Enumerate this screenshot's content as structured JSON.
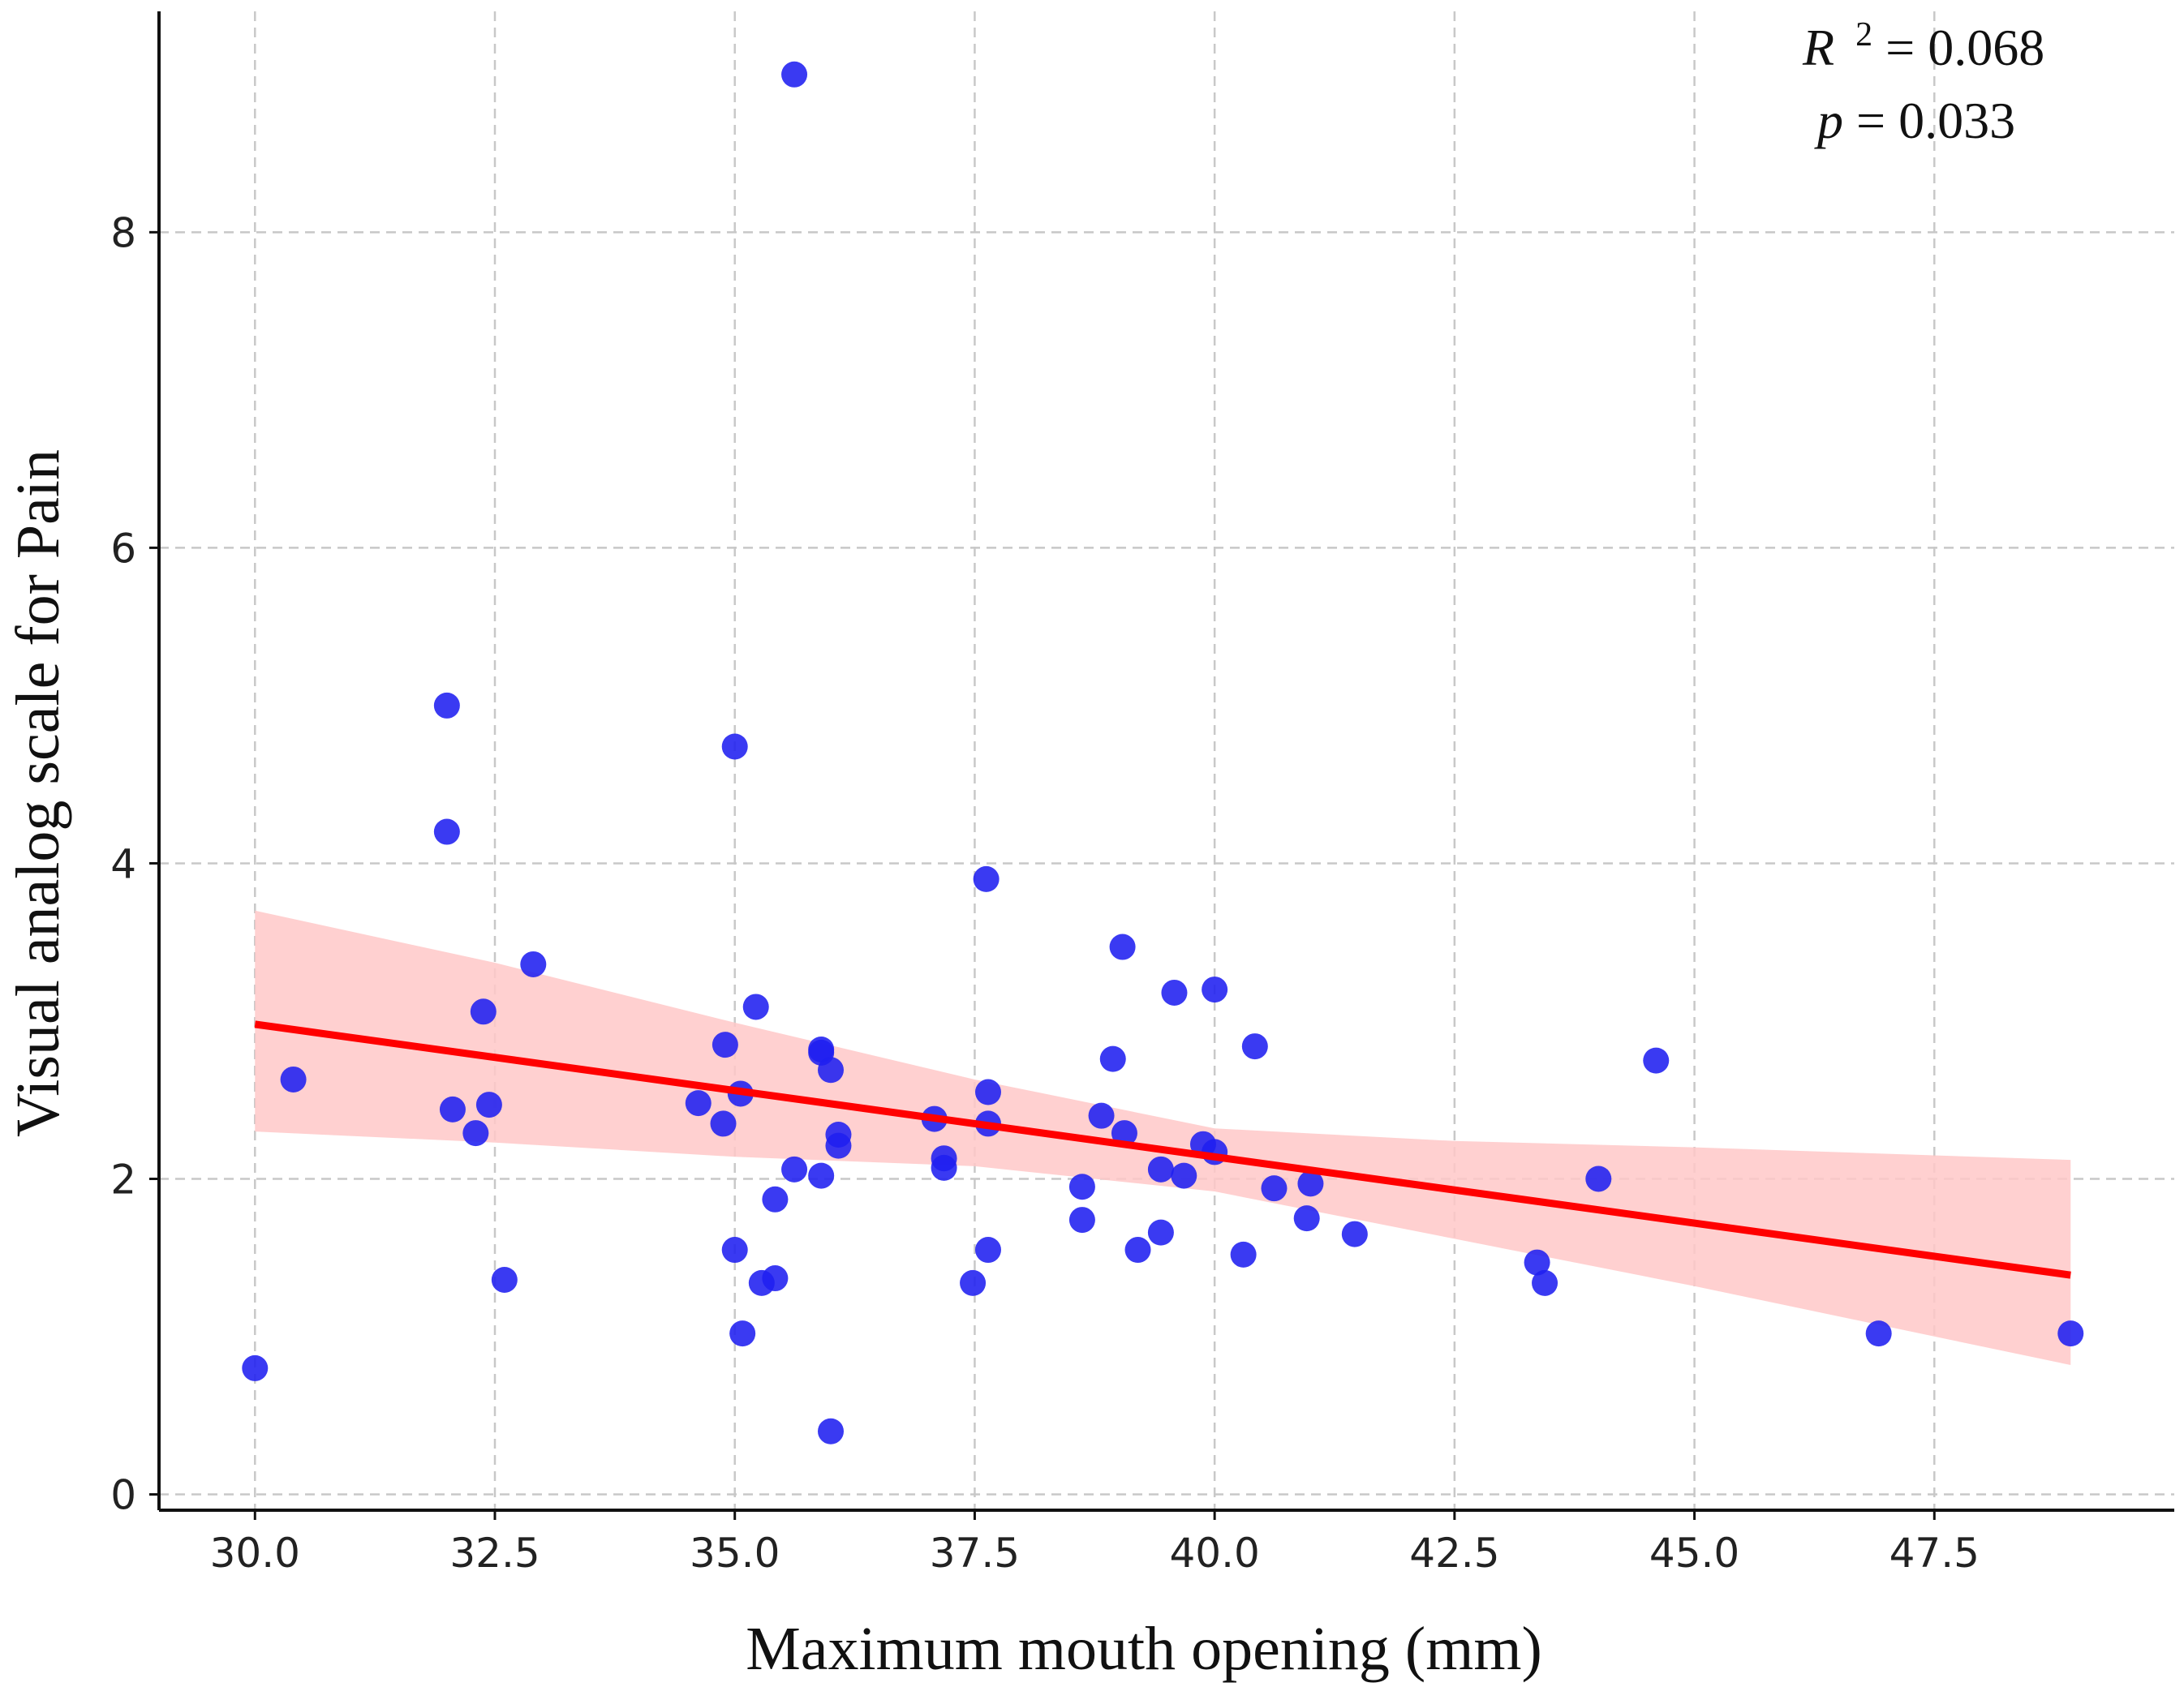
{
  "chart_data": {
    "type": "scatter",
    "xlabel": "Maximum mouth opening (mm)",
    "ylabel": "Visual analog scale for Pain",
    "xlim": [
      29.0,
      50.0
    ],
    "ylim": [
      -0.1,
      9.4
    ],
    "x_ticks": [
      "30.0",
      "32.5",
      "35.0",
      "37.5",
      "40.0",
      "42.5",
      "45.0",
      "47.5"
    ],
    "y_ticks": [
      "0",
      "2",
      "4",
      "6",
      "8"
    ],
    "x_tick_values": [
      30.0,
      32.5,
      35.0,
      37.5,
      40.0,
      42.5,
      45.0,
      47.5
    ],
    "y_tick_values": [
      0,
      2,
      4,
      6,
      8
    ],
    "grid": true,
    "annotation": {
      "r2_symbol": "R",
      "r2_exponent": "2",
      "r2_value": " = 0.068",
      "p_symbol": "p",
      "p_value": " = 0.033"
    },
    "colors": {
      "points": "#1f1ff0",
      "fit_line": "#ff0000",
      "confidence_band": "#ffc8c8"
    },
    "points": [
      {
        "x": 30.0,
        "y": 0.8
      },
      {
        "x": 30.4,
        "y": 2.63
      },
      {
        "x": 32.0,
        "y": 5.0
      },
      {
        "x": 32.0,
        "y": 4.2
      },
      {
        "x": 32.06,
        "y": 2.44
      },
      {
        "x": 32.3,
        "y": 2.29
      },
      {
        "x": 32.38,
        "y": 3.06
      },
      {
        "x": 32.44,
        "y": 2.47
      },
      {
        "x": 32.6,
        "y": 1.36
      },
      {
        "x": 32.9,
        "y": 3.36
      },
      {
        "x": 34.62,
        "y": 2.48
      },
      {
        "x": 34.88,
        "y": 2.35
      },
      {
        "x": 34.9,
        "y": 2.85
      },
      {
        "x": 35.0,
        "y": 4.74
      },
      {
        "x": 35.0,
        "y": 1.55
      },
      {
        "x": 35.06,
        "y": 2.54
      },
      {
        "x": 35.08,
        "y": 1.02
      },
      {
        "x": 35.22,
        "y": 3.09
      },
      {
        "x": 35.28,
        "y": 1.34
      },
      {
        "x": 35.42,
        "y": 1.37
      },
      {
        "x": 35.42,
        "y": 1.87
      },
      {
        "x": 35.62,
        "y": 9.0
      },
      {
        "x": 35.62,
        "y": 2.06
      },
      {
        "x": 35.9,
        "y": 2.82
      },
      {
        "x": 35.9,
        "y": 2.8
      },
      {
        "x": 35.9,
        "y": 2.02
      },
      {
        "x": 36.0,
        "y": 2.69
      },
      {
        "x": 36.0,
        "y": 0.4
      },
      {
        "x": 36.08,
        "y": 2.28
      },
      {
        "x": 36.08,
        "y": 2.21
      },
      {
        "x": 37.08,
        "y": 2.38
      },
      {
        "x": 37.18,
        "y": 2.13
      },
      {
        "x": 37.18,
        "y": 2.07
      },
      {
        "x": 37.48,
        "y": 1.34
      },
      {
        "x": 37.62,
        "y": 3.9
      },
      {
        "x": 37.64,
        "y": 2.55
      },
      {
        "x": 37.64,
        "y": 2.35
      },
      {
        "x": 37.64,
        "y": 1.55
      },
      {
        "x": 38.62,
        "y": 1.95
      },
      {
        "x": 38.62,
        "y": 1.74
      },
      {
        "x": 38.82,
        "y": 2.4
      },
      {
        "x": 38.94,
        "y": 2.76
      },
      {
        "x": 39.04,
        "y": 3.47
      },
      {
        "x": 39.06,
        "y": 2.29
      },
      {
        "x": 39.2,
        "y": 1.55
      },
      {
        "x": 39.44,
        "y": 2.06
      },
      {
        "x": 39.44,
        "y": 1.66
      },
      {
        "x": 39.58,
        "y": 3.18
      },
      {
        "x": 39.68,
        "y": 2.02
      },
      {
        "x": 39.88,
        "y": 2.22
      },
      {
        "x": 40.0,
        "y": 3.2
      },
      {
        "x": 40.0,
        "y": 2.17
      },
      {
        "x": 40.3,
        "y": 1.52
      },
      {
        "x": 40.42,
        "y": 2.84
      },
      {
        "x": 40.62,
        "y": 1.94
      },
      {
        "x": 40.96,
        "y": 1.75
      },
      {
        "x": 41.0,
        "y": 1.97
      },
      {
        "x": 41.46,
        "y": 1.65
      },
      {
        "x": 43.36,
        "y": 1.47
      },
      {
        "x": 43.44,
        "y": 1.34
      },
      {
        "x": 44.0,
        "y": 2.0
      },
      {
        "x": 44.6,
        "y": 2.75
      },
      {
        "x": 46.92,
        "y": 1.02
      },
      {
        "x": 48.92,
        "y": 1.02
      }
    ],
    "fit_line": {
      "x": [
        30.0,
        48.92
      ],
      "y": [
        2.98,
        1.39
      ]
    },
    "confidence_band": {
      "x": [
        30.0,
        32.5,
        35.0,
        37.5,
        40.0,
        42.5,
        45.0,
        48.92
      ],
      "upper": [
        3.7,
        3.37,
        2.99,
        2.63,
        2.32,
        2.24,
        2.2,
        2.12
      ],
      "lower": [
        2.3,
        2.23,
        2.14,
        2.08,
        1.92,
        1.62,
        1.32,
        0.82
      ]
    }
  }
}
